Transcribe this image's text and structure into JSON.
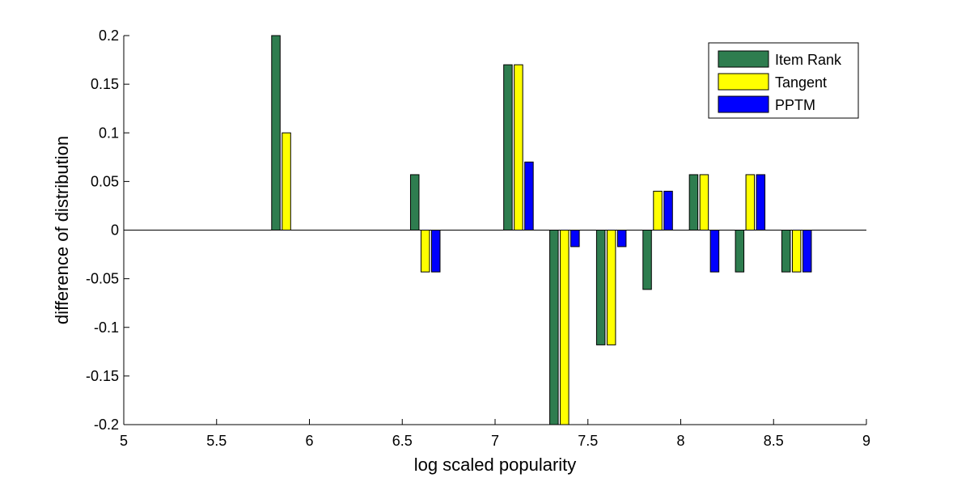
{
  "chart_data": {
    "type": "bar",
    "xlabel": "log scaled popularity",
    "ylabel": "difference of distribution",
    "xlim": [
      5,
      9
    ],
    "ylim": [
      -0.2,
      0.2
    ],
    "xticks": [
      "5",
      "5.5",
      "6",
      "6.5",
      "7",
      "7.5",
      "8",
      "8.5",
      "9"
    ],
    "yticks": [
      "0.2",
      "0.15",
      "0.1",
      "0.05",
      "0",
      "-0.05",
      "-0.1",
      "-0.15",
      "-0.2"
    ],
    "legend_position": "top-right",
    "grid": false,
    "bin_centers": [
      5.876,
      6.624,
      7.126,
      7.374,
      7.626,
      7.876,
      8.126,
      8.374,
      8.624
    ],
    "series": [
      {
        "name": "Item Rank",
        "color": "#2e7d4f",
        "values": [
          0.2,
          0.057,
          0.17,
          -0.2,
          -0.118,
          -0.061,
          0.057,
          -0.043,
          -0.043
        ]
      },
      {
        "name": "Tangent",
        "color": "#ffff00",
        "values": [
          0.1,
          -0.043,
          0.17,
          -0.2,
          -0.118,
          0.04,
          0.057,
          0.057,
          -0.043
        ]
      },
      {
        "name": "PPTM",
        "color": "#0000ff",
        "values": [
          0,
          -0.043,
          0.07,
          -0.017,
          -0.017,
          0.04,
          -0.043,
          0.057,
          -0.043
        ]
      }
    ]
  }
}
